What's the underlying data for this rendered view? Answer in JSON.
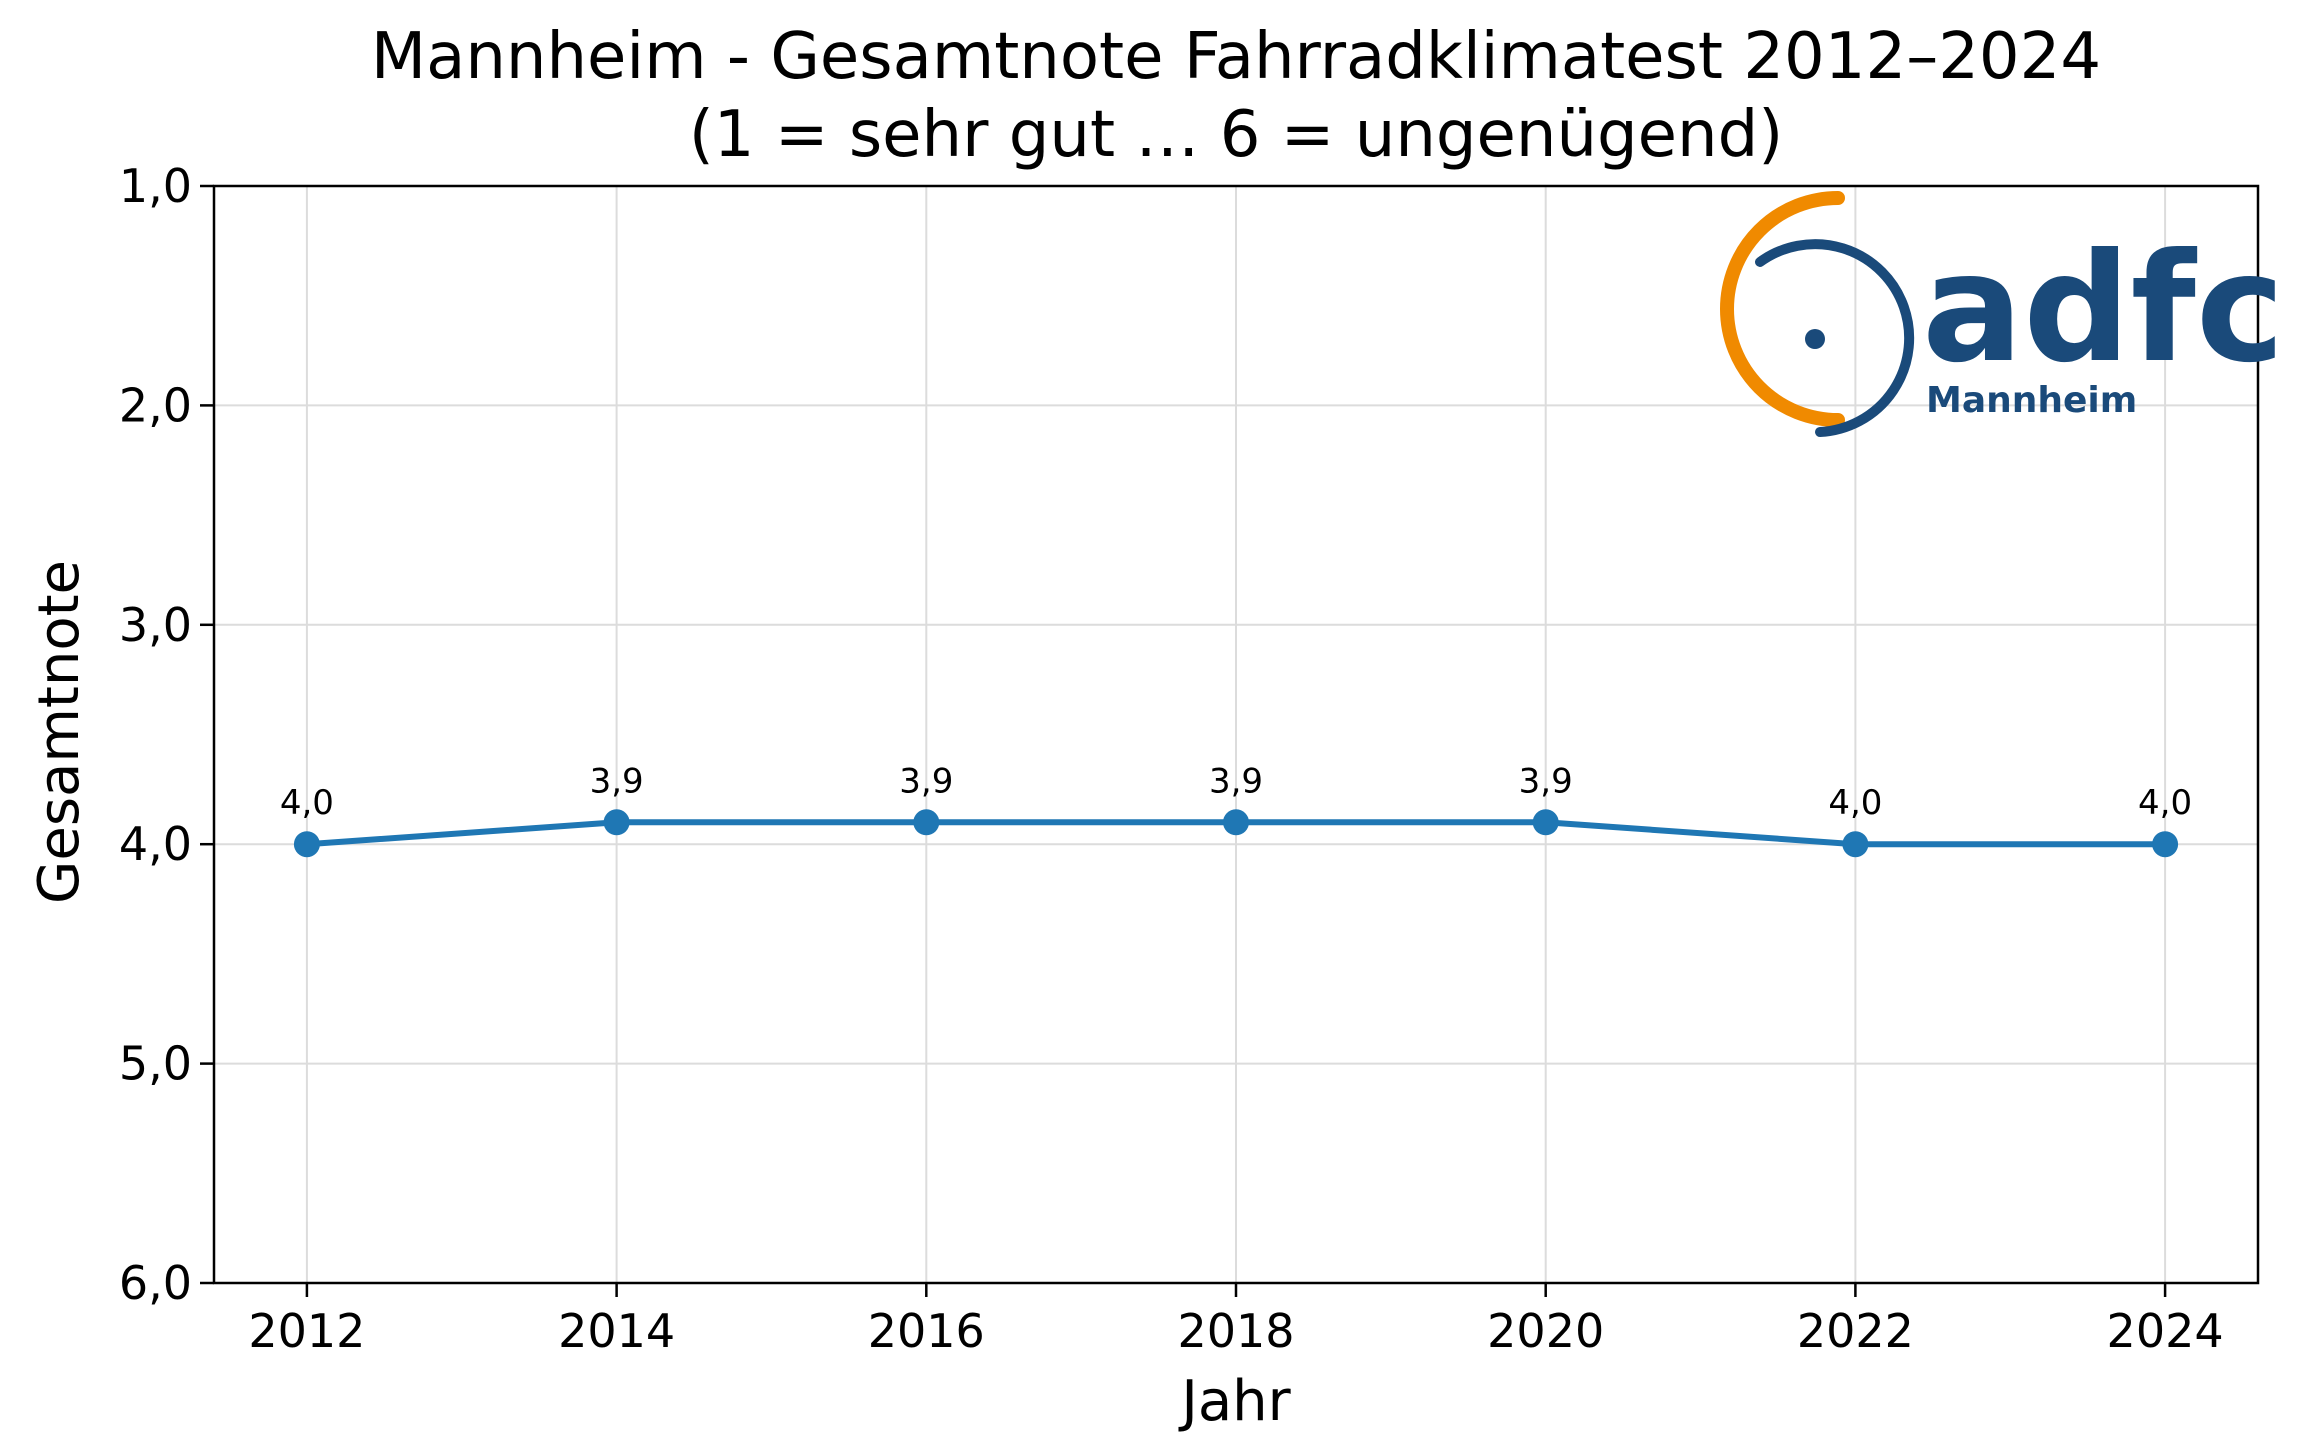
{
  "chart_data": {
    "type": "line",
    "title_line1": "Mannheim - Gesamtnote Fahrradklimatest 2012–2024",
    "title_line2": "(1 = sehr gut … 6 = ungenügend)",
    "xlabel": "Jahr",
    "ylabel": "Gesamtnote",
    "x": [
      2012,
      2014,
      2016,
      2018,
      2020,
      2022,
      2024
    ],
    "x_tick_labels": [
      "2012",
      "2014",
      "2016",
      "2018",
      "2020",
      "2022",
      "2024"
    ],
    "y_ticks": [
      1,
      2,
      3,
      4,
      5,
      6
    ],
    "y_tick_labels": [
      "1,0",
      "2,0",
      "3,0",
      "4,0",
      "5,0",
      "6,0"
    ],
    "y_inverted": true,
    "xlim": [
      2011.4,
      2024.6
    ],
    "ylim": [
      1,
      6
    ],
    "grid": true,
    "series": [
      {
        "values": [
          4.0,
          3.9,
          3.9,
          3.9,
          3.9,
          4.0,
          4.0
        ],
        "data_labels": [
          "4,0",
          "3,9",
          "3,9",
          "3,9",
          "3,9",
          "4,0",
          "4,0"
        ],
        "color": "#1f77b4"
      }
    ]
  },
  "logo": {
    "text": "adfc",
    "subtext": "Mannheim",
    "color_primary": "#1a4a7a",
    "color_accent": "#f08a00"
  }
}
